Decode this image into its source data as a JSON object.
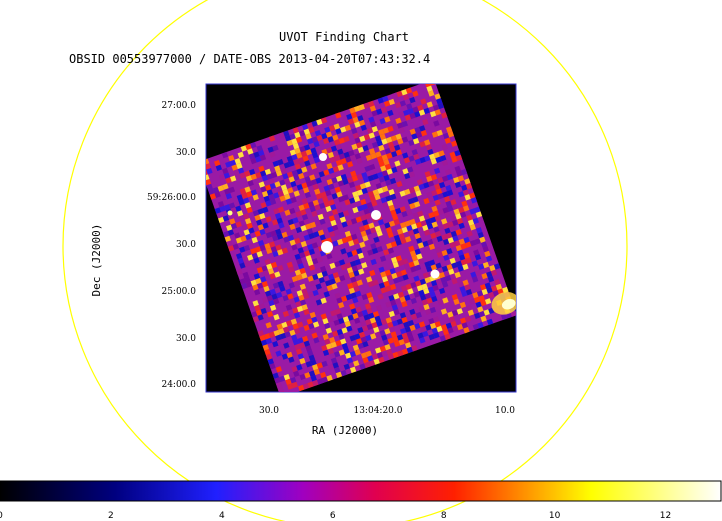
{
  "title": "UVOT Finding Chart",
  "subtitle": "OBSID 00553977000 / DATE-OBS 2013-04-20T07:43:32.4",
  "axes": {
    "xlabel": "RA (J2000)",
    "ylabel": "Dec (J2000)",
    "x_ticks": [
      "30.0",
      "13:04:20.0",
      "10.0"
    ],
    "y_ticks": [
      "27:00.0",
      "30.0",
      "59:26:00.0",
      "30.0",
      "25:00.0",
      "30.0",
      "24:00.0"
    ]
  },
  "colorbar": {
    "min": 0,
    "max": 13,
    "ticks": [
      "0",
      "2",
      "4",
      "6",
      "8",
      "10",
      "12"
    ]
  },
  "colors": {
    "circle": "#ffff00",
    "frame": "#3333cc",
    "background": "#000000"
  },
  "sources": 5
}
